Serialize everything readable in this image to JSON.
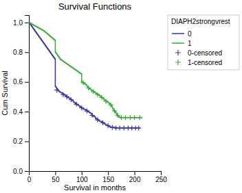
{
  "chart_data": {
    "type": "line",
    "title": "Survival Functions",
    "xlabel": "Survival in months",
    "ylabel": "Cum Survival",
    "legend_title": "DIAPH2strongvrest",
    "legend": "right",
    "xlim": [
      0,
      250
    ],
    "ylim": [
      0.0,
      1.05
    ],
    "xticks": [
      0,
      50,
      100,
      150,
      200,
      250
    ],
    "yticks": [
      {
        "value": 0.0,
        "label": "0.0"
      },
      0.2,
      0.4,
      0.6,
      0.8,
      {
        "value": 1.0,
        "label": "1.0"
      }
    ],
    "series": [
      {
        "name": "0",
        "type": "step",
        "color": "#3333aa",
        "x": [
          0,
          1,
          2,
          3,
          4,
          5,
          6,
          7,
          8,
          9,
          10,
          11,
          12,
          13,
          14,
          15,
          16,
          17,
          18,
          19,
          20,
          21,
          22,
          23,
          24,
          25,
          26,
          27,
          28,
          29,
          30,
          31,
          32,
          33,
          34,
          35,
          36,
          37,
          38,
          39,
          40,
          41,
          42,
          43,
          44,
          45,
          46,
          47,
          48,
          49,
          50,
          51,
          52,
          53,
          54,
          55,
          56,
          57,
          58,
          59,
          60,
          62,
          64,
          66,
          68,
          70,
          72,
          74,
          76,
          78,
          80,
          82,
          84,
          86,
          88,
          90,
          92,
          94,
          96,
          98,
          100,
          102,
          104,
          106,
          108,
          110,
          112,
          114,
          116,
          118,
          120,
          122,
          124,
          126,
          128,
          130,
          132,
          134,
          136,
          138,
          140,
          142,
          144,
          146,
          148,
          150,
          152,
          154,
          156,
          158,
          160,
          162,
          164,
          166,
          168,
          170,
          175,
          180,
          185,
          190,
          195,
          200,
          205,
          210
        ],
        "values": [
          1.0,
          0.995,
          0.99,
          0.985,
          0.98,
          0.975,
          0.97,
          0.965,
          0.96,
          0.955,
          0.95,
          0.945,
          0.94,
          0.935,
          0.93,
          0.925,
          0.92,
          0.915,
          0.91,
          0.905,
          0.9,
          0.895,
          0.89,
          0.885,
          0.88,
          0.875,
          0.87,
          0.865,
          0.86,
          0.855,
          0.85,
          0.845,
          0.84,
          0.835,
          0.83,
          0.825,
          0.82,
          0.815,
          0.81,
          0.805,
          0.8,
          0.795,
          0.79,
          0.785,
          0.78,
          0.775,
          0.77,
          0.765,
          0.76,
          0.755,
          0.57,
          0.565,
          0.56,
          0.555,
          0.55,
          0.545,
          0.54,
          0.535,
          0.535,
          0.53,
          0.53,
          0.525,
          0.52,
          0.515,
          0.51,
          0.505,
          0.5,
          0.495,
          0.49,
          0.485,
          0.48,
          0.475,
          0.465,
          0.46,
          0.455,
          0.45,
          0.445,
          0.44,
          0.435,
          0.43,
          0.425,
          0.42,
          0.415,
          0.415,
          0.41,
          0.405,
          0.4,
          0.395,
          0.39,
          0.385,
          0.375,
          0.37,
          0.365,
          0.355,
          0.35,
          0.345,
          0.34,
          0.335,
          0.335,
          0.33,
          0.325,
          0.32,
          0.315,
          0.31,
          0.31,
          0.305,
          0.3,
          0.295,
          0.295,
          0.295,
          0.295,
          0.293,
          0.291,
          0.29,
          0.29,
          0.29,
          0.29,
          0.29,
          0.29,
          0.29,
          0.29,
          0.29,
          0.29,
          0.29
        ]
      },
      {
        "name": "1",
        "type": "step",
        "color": "#33aa33",
        "x": [
          0,
          1,
          2,
          3,
          4,
          5,
          6,
          7,
          8,
          9,
          10,
          11,
          12,
          13,
          14,
          15,
          16,
          17,
          18,
          19,
          20,
          21,
          22,
          23,
          24,
          25,
          26,
          27,
          28,
          29,
          30,
          31,
          32,
          33,
          34,
          35,
          36,
          37,
          38,
          39,
          40,
          41,
          42,
          43,
          44,
          45,
          46,
          47,
          48,
          49,
          50,
          51,
          52,
          53,
          54,
          55,
          56,
          57,
          58,
          59,
          60,
          62,
          64,
          66,
          68,
          70,
          72,
          74,
          76,
          78,
          80,
          82,
          84,
          86,
          88,
          90,
          92,
          94,
          96,
          98,
          100,
          102,
          104,
          106,
          108,
          110,
          112,
          114,
          116,
          118,
          120,
          122,
          124,
          126,
          128,
          130,
          132,
          134,
          136,
          138,
          140,
          142,
          144,
          146,
          148,
          150,
          152,
          154,
          155,
          156,
          157,
          158,
          159,
          160,
          161,
          162,
          163,
          164,
          165,
          166,
          167,
          168,
          169,
          170,
          172,
          175,
          180,
          185,
          190,
          195,
          200,
          205,
          210,
          215
        ],
        "values": [
          1.0,
          0.998,
          0.996,
          0.994,
          0.992,
          0.99,
          0.988,
          0.986,
          0.984,
          0.982,
          0.98,
          0.978,
          0.976,
          0.974,
          0.972,
          0.97,
          0.968,
          0.966,
          0.964,
          0.962,
          0.96,
          0.958,
          0.956,
          0.954,
          0.952,
          0.95,
          0.948,
          0.946,
          0.944,
          0.94,
          0.938,
          0.935,
          0.932,
          0.929,
          0.926,
          0.923,
          0.92,
          0.917,
          0.914,
          0.911,
          0.908,
          0.905,
          0.902,
          0.899,
          0.896,
          0.893,
          0.89,
          0.887,
          0.884,
          0.881,
          0.8,
          0.795,
          0.79,
          0.785,
          0.78,
          0.775,
          0.77,
          0.765,
          0.76,
          0.755,
          0.75,
          0.745,
          0.74,
          0.735,
          0.73,
          0.725,
          0.72,
          0.715,
          0.71,
          0.705,
          0.7,
          0.695,
          0.69,
          0.685,
          0.68,
          0.675,
          0.67,
          0.665,
          0.66,
          0.655,
          0.6,
          0.595,
          0.59,
          0.585,
          0.58,
          0.57,
          0.56,
          0.555,
          0.55,
          0.545,
          0.54,
          0.535,
          0.53,
          0.525,
          0.52,
          0.515,
          0.51,
          0.505,
          0.5,
          0.495,
          0.49,
          0.48,
          0.475,
          0.47,
          0.465,
          0.46,
          0.455,
          0.45,
          0.445,
          0.44,
          0.435,
          0.425,
          0.42,
          0.415,
          0.41,
          0.405,
          0.4,
          0.395,
          0.39,
          0.385,
          0.38,
          0.375,
          0.37,
          0.365,
          0.362,
          0.36,
          0.36,
          0.36,
          0.36,
          0.36,
          0.36,
          0.36,
          0.36,
          0.36
        ]
      },
      {
        "name": "0-censored",
        "type": "scatter",
        "marker": "+",
        "color": "#3333aa",
        "x": [
          53,
          65,
          72,
          80,
          90,
          100,
          110,
          120,
          130,
          140,
          150,
          158,
          165,
          172,
          180,
          188,
          195,
          202,
          208
        ],
        "values": [
          0.545,
          0.515,
          0.5,
          0.48,
          0.45,
          0.425,
          0.405,
          0.375,
          0.345,
          0.325,
          0.305,
          0.295,
          0.29,
          0.29,
          0.29,
          0.29,
          0.29,
          0.29,
          0.29
        ]
      },
      {
        "name": "1-censored",
        "type": "scatter",
        "marker": "+",
        "color": "#33aa33",
        "x": [
          103,
          113,
          122,
          130,
          138,
          146,
          155,
          162,
          168,
          175,
          183,
          192,
          200,
          210
        ],
        "values": [
          0.595,
          0.56,
          0.535,
          0.515,
          0.495,
          0.47,
          0.445,
          0.405,
          0.375,
          0.36,
          0.36,
          0.36,
          0.36,
          0.36
        ]
      }
    ]
  }
}
